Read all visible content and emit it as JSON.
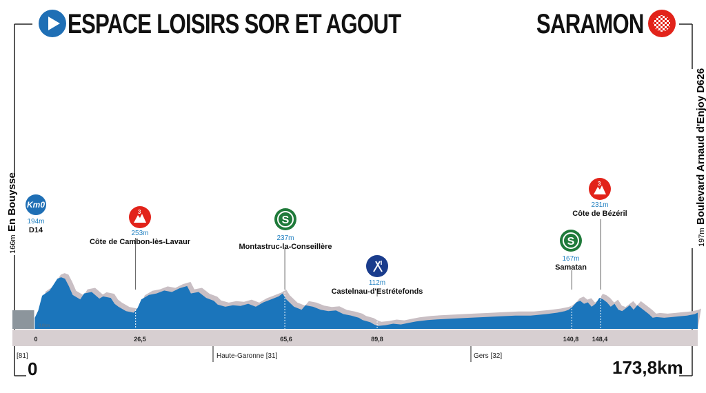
{
  "start": {
    "name": "ESPACE LOISIRS SOR ET AGOUT",
    "place": "En Bouysse",
    "altitude": "166m",
    "km": "0",
    "dept": "[81]",
    "kmzero_label": "Km0",
    "kmzero_alt": "194m",
    "kmzero_road": "D14"
  },
  "finish": {
    "name": "SARAMON",
    "place": "Boulevard Arnaud d'Enjoy D626",
    "altitude": "197m",
    "km": "173,8km",
    "dept": "[32]"
  },
  "markers": [
    {
      "type": "climb-3",
      "name": "Côte de Cambon-lès-Lavaur",
      "altitude": "253m",
      "km": "26,5"
    },
    {
      "type": "sprint",
      "name": "Montastruc-la-Conseillère",
      "altitude": "237m",
      "km": "65,6"
    },
    {
      "type": "feed",
      "name": "Castelnau-d'Estrétefonds",
      "altitude": "112m",
      "km": "89,8"
    },
    {
      "type": "sprint",
      "name": "Samatan",
      "altitude": "167m",
      "km": "140,8"
    },
    {
      "type": "climb-3",
      "name": "Côte de Bézéril",
      "altitude": "231m",
      "km": "148,4"
    }
  ],
  "regions": [
    {
      "name": "Haute-Garonne",
      "code": "[31]"
    },
    {
      "name": "Gers",
      "code": "[32]"
    }
  ],
  "badges": {
    "sprint": "S",
    "climb": "3"
  },
  "baseline": "0,0km",
  "colors": {
    "profile": "#1b75bb",
    "shadow": "#c9bfc4",
    "road": "#d7cfd1",
    "climb": "#e2231a",
    "sprint": "#1f7a3a",
    "start": "#1f6fb5",
    "pre": "#8c959c"
  },
  "profile": [
    [
      0,
      0.14
    ],
    [
      1,
      0.25
    ],
    [
      2,
      0.45
    ],
    [
      4,
      0.52
    ],
    [
      5,
      0.6
    ],
    [
      6,
      0.68
    ],
    [
      7,
      0.7
    ],
    [
      8,
      0.68
    ],
    [
      9,
      0.58
    ],
    [
      10,
      0.46
    ],
    [
      12,
      0.4
    ],
    [
      13,
      0.48
    ],
    [
      15,
      0.5
    ],
    [
      17,
      0.41
    ],
    [
      18,
      0.44
    ],
    [
      20,
      0.42
    ],
    [
      21,
      0.34
    ],
    [
      22,
      0.3
    ],
    [
      24,
      0.24
    ],
    [
      26,
      0.22
    ],
    [
      27,
      0.28
    ],
    [
      28,
      0.4
    ],
    [
      30,
      0.46
    ],
    [
      32,
      0.48
    ],
    [
      34,
      0.52
    ],
    [
      36,
      0.5
    ],
    [
      38,
      0.55
    ],
    [
      40,
      0.58
    ],
    [
      41,
      0.48
    ],
    [
      43,
      0.5
    ],
    [
      45,
      0.42
    ],
    [
      47,
      0.38
    ],
    [
      48,
      0.33
    ],
    [
      50,
      0.3
    ],
    [
      52,
      0.32
    ],
    [
      54,
      0.31
    ],
    [
      56,
      0.34
    ],
    [
      58,
      0.3
    ],
    [
      60,
      0.36
    ],
    [
      62,
      0.4
    ],
    [
      64,
      0.44
    ],
    [
      65,
      0.48
    ],
    [
      66,
      0.4
    ],
    [
      68,
      0.3
    ],
    [
      70,
      0.26
    ],
    [
      71,
      0.32
    ],
    [
      73,
      0.3
    ],
    [
      75,
      0.26
    ],
    [
      77,
      0.24
    ],
    [
      79,
      0.25
    ],
    [
      81,
      0.2
    ],
    [
      83,
      0.18
    ],
    [
      85,
      0.15
    ],
    [
      86,
      0.12
    ],
    [
      88,
      0.09
    ],
    [
      89,
      0.06
    ],
    [
      90,
      0.04
    ],
    [
      92,
      0.05
    ],
    [
      94,
      0.07
    ],
    [
      96,
      0.06
    ],
    [
      98,
      0.08
    ],
    [
      100,
      0.1
    ],
    [
      103,
      0.12
    ],
    [
      106,
      0.13
    ],
    [
      110,
      0.14
    ],
    [
      114,
      0.15
    ],
    [
      118,
      0.16
    ],
    [
      122,
      0.17
    ],
    [
      126,
      0.18
    ],
    [
      130,
      0.18
    ],
    [
      134,
      0.2
    ],
    [
      137,
      0.22
    ],
    [
      139,
      0.24
    ],
    [
      140,
      0.26
    ],
    [
      141,
      0.3
    ],
    [
      142,
      0.36
    ],
    [
      143,
      0.38
    ],
    [
      144,
      0.34
    ],
    [
      145,
      0.36
    ],
    [
      146,
      0.3
    ],
    [
      147,
      0.34
    ],
    [
      148,
      0.42
    ],
    [
      149,
      0.4
    ],
    [
      150,
      0.36
    ],
    [
      151,
      0.3
    ],
    [
      152,
      0.34
    ],
    [
      153,
      0.26
    ],
    [
      154,
      0.24
    ],
    [
      155,
      0.28
    ],
    [
      156,
      0.32
    ],
    [
      157,
      0.26
    ],
    [
      158,
      0.32
    ],
    [
      159,
      0.28
    ],
    [
      160,
      0.24
    ],
    [
      161,
      0.2
    ],
    [
      162,
      0.15
    ],
    [
      163,
      0.16
    ],
    [
      165,
      0.15
    ],
    [
      167,
      0.16
    ],
    [
      169,
      0.17
    ],
    [
      171,
      0.18
    ],
    [
      173,
      0.2
    ],
    [
      173.8,
      0.22
    ]
  ]
}
